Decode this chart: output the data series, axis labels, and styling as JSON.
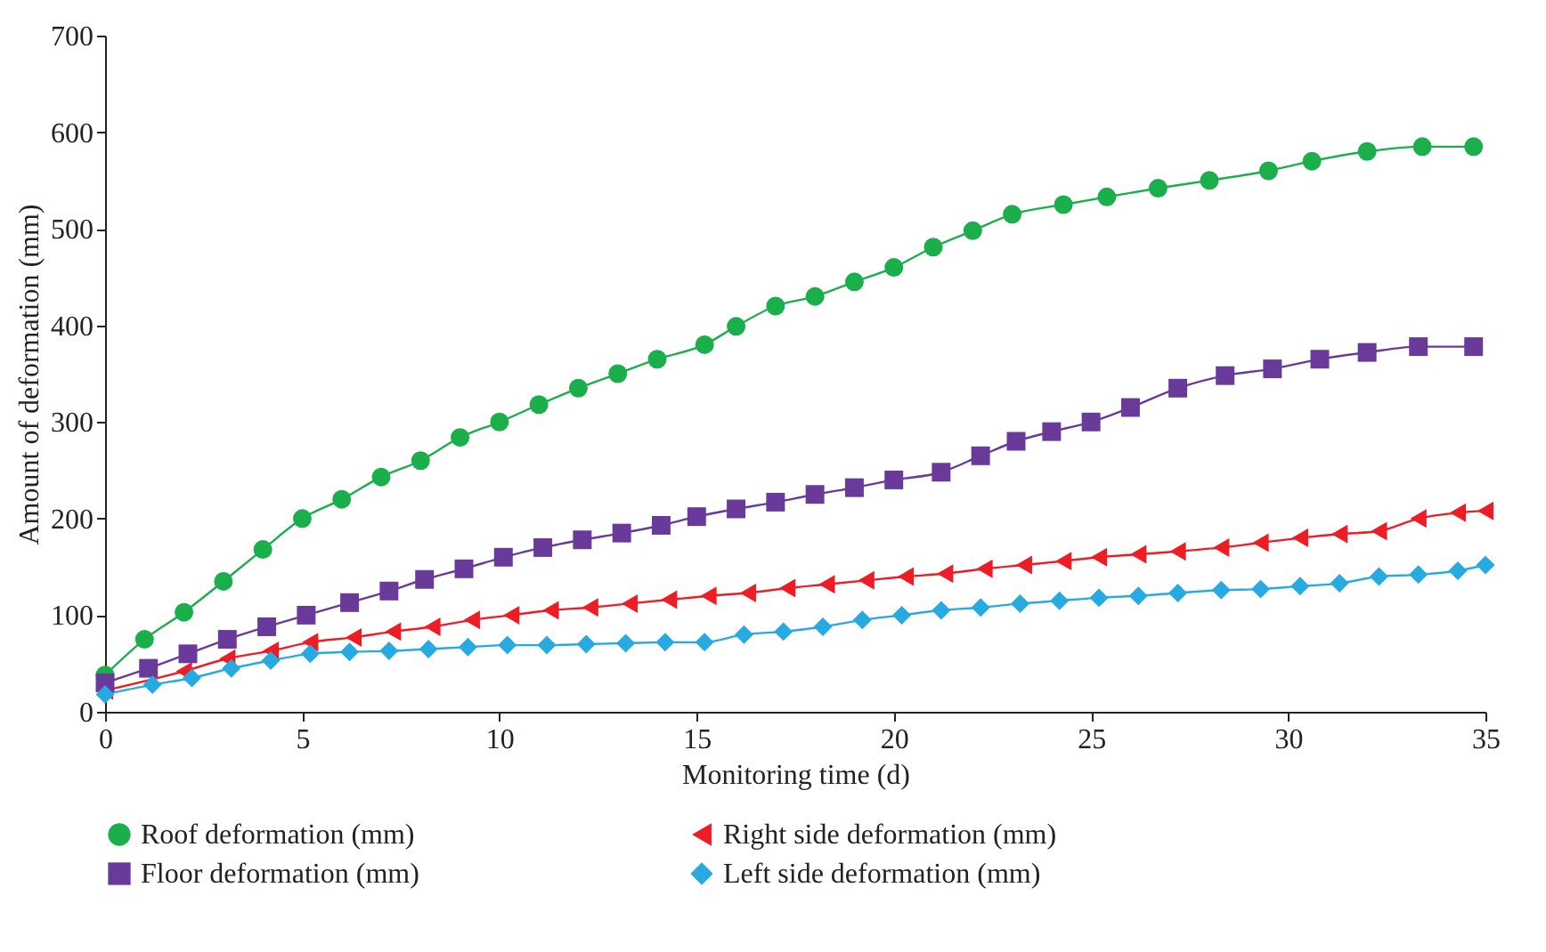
{
  "chart_data": {
    "type": "line",
    "xlabel": "Monitoring time (d)",
    "ylabel": "Amount of deformation (mm)",
    "xlim": [
      0,
      35
    ],
    "xticks": [
      0,
      5,
      10,
      15,
      20,
      25,
      30,
      35
    ],
    "ylim": [
      0,
      700
    ],
    "yticks": [
      0,
      100,
      200,
      300,
      400,
      500,
      600,
      700
    ],
    "grid": false,
    "legend": "bottom",
    "line_style": "solid",
    "series": [
      {
        "name": "Roof deformation (mm)",
        "color": "#1aaf4b",
        "marker": "circle",
        "x": [
          0,
          1,
          2,
          3,
          4,
          5,
          6,
          7,
          8,
          9,
          10,
          11,
          12,
          13,
          14,
          15.2,
          16,
          17,
          18,
          19,
          20,
          21,
          22,
          23,
          24.3,
          25.4,
          26.7,
          28,
          29.5,
          30.6,
          32,
          33.4,
          34.7
        ],
        "values": [
          38,
          75,
          103,
          135,
          168,
          200,
          220,
          243,
          260,
          284,
          300,
          318,
          335,
          350,
          365,
          380,
          399,
          420,
          430,
          445,
          460,
          481,
          498,
          515,
          525,
          533,
          542,
          550,
          560,
          570,
          580,
          585,
          585
        ]
      },
      {
        "name": "Right side deformation (mm)",
        "color": "#ee1c25",
        "marker": "triangle",
        "x": [
          0,
          2,
          3.1,
          4.2,
          5.2,
          6.3,
          7.3,
          8.3,
          9.3,
          10.3,
          11.3,
          12.3,
          13.3,
          14.3,
          15.3,
          16.3,
          17.3,
          18.3,
          19.3,
          20.3,
          21.3,
          22.3,
          23.3,
          24.3,
          25.2,
          26.2,
          27.2,
          28.3,
          29.3,
          30.3,
          31.3,
          32.3,
          33.3,
          34.3,
          35
        ],
        "values": [
          22,
          42,
          55,
          63,
          72,
          77,
          83,
          88,
          95,
          100,
          105,
          108,
          112,
          116,
          120,
          123,
          128,
          132,
          136,
          140,
          143,
          148,
          152,
          156,
          160,
          163,
          166,
          170,
          175,
          180,
          184,
          187,
          200,
          206,
          208
        ]
      },
      {
        "name": "Floor deformation (mm)",
        "color": "#6a3a9a",
        "marker": "square",
        "x": [
          0,
          1.1,
          2.1,
          3.1,
          4.1,
          5.1,
          6.2,
          7.2,
          8.1,
          9.1,
          10.1,
          11.1,
          12.1,
          13.1,
          14.1,
          15,
          16,
          17,
          18,
          19,
          20,
          21.2,
          22.2,
          23.1,
          24,
          25,
          26,
          27.2,
          28.4,
          29.6,
          30.8,
          32,
          33.3,
          34.7
        ],
        "values": [
          30,
          45,
          60,
          75,
          88,
          100,
          113,
          125,
          137,
          148,
          160,
          170,
          178,
          185,
          193,
          202,
          210,
          217,
          225,
          232,
          240,
          248,
          265,
          280,
          290,
          300,
          315,
          335,
          348,
          355,
          365,
          372,
          378,
          378
        ]
      },
      {
        "name": "Left side deformation (mm)",
        "color": "#27aae1",
        "marker": "diamond",
        "x": [
          0,
          1.2,
          2.2,
          3.2,
          4.2,
          5.2,
          6.2,
          7.2,
          8.2,
          9.2,
          10.2,
          11.2,
          12.2,
          13.2,
          14.2,
          15.2,
          16.2,
          17.2,
          18.2,
          19.2,
          20.2,
          21.2,
          22.2,
          23.2,
          24.2,
          25.2,
          26.2,
          27.2,
          28.3,
          29.3,
          30.3,
          31.3,
          32.3,
          33.3,
          34.3,
          35
        ],
        "values": [
          18,
          28,
          35,
          45,
          53,
          60,
          62,
          63,
          65,
          67,
          69,
          69,
          70,
          71,
          72,
          72,
          80,
          83,
          88,
          95,
          100,
          105,
          108,
          112,
          115,
          118,
          120,
          123,
          126,
          127,
          130,
          133,
          140,
          142,
          146,
          152
        ]
      }
    ]
  }
}
